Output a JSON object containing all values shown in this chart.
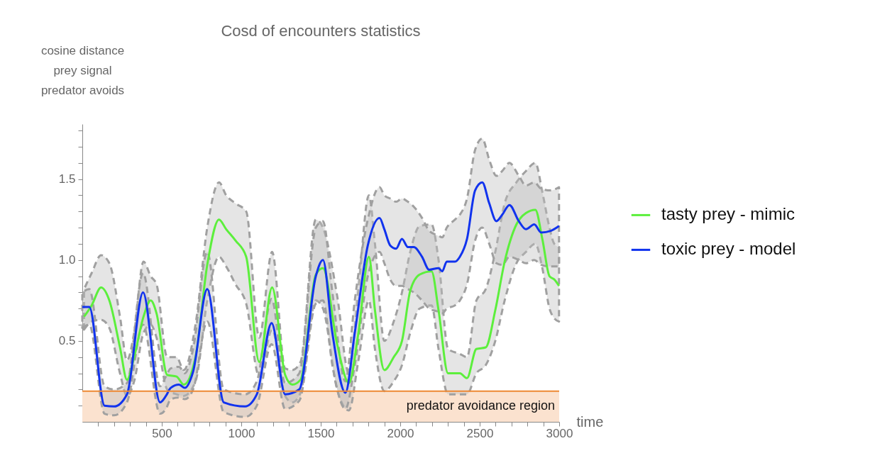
{
  "chart_data": {
    "type": "line",
    "title": "Cosd of encounters statistics",
    "xlabel": "time",
    "ylabel": "cosine distance\nprey signal\npredator avoids",
    "xlim": [
      0,
      3000
    ],
    "ylim": [
      0,
      1.84
    ],
    "xticks": [
      {
        "value": 100,
        "label": null
      },
      {
        "value": 200,
        "label": null
      },
      {
        "value": 300,
        "label": null
      },
      {
        "value": 400,
        "label": null
      },
      500,
      {
        "value": 600,
        "label": null
      },
      {
        "value": 700,
        "label": null
      },
      {
        "value": 800,
        "label": null
      },
      {
        "value": 900,
        "label": null
      },
      1000,
      {
        "value": 1100,
        "label": null
      },
      {
        "value": 1200,
        "label": null
      },
      {
        "value": 1300,
        "label": null
      },
      {
        "value": 1400,
        "label": null
      },
      1500,
      {
        "value": 1600,
        "label": null
      },
      {
        "value": 1700,
        "label": null
      },
      {
        "value": 1800,
        "label": null
      },
      {
        "value": 1900,
        "label": null
      },
      2000,
      {
        "value": 2100,
        "label": null
      },
      {
        "value": 2200,
        "label": null
      },
      {
        "value": 2300,
        "label": null
      },
      {
        "value": 2400,
        "label": null
      },
      2500,
      {
        "value": 2600,
        "label": null
      },
      {
        "value": 2700,
        "label": null
      },
      {
        "value": 2800,
        "label": null
      },
      {
        "value": 2900,
        "label": null
      },
      3000
    ],
    "yticks": [
      {
        "value": 0.1,
        "label": null
      },
      {
        "value": 0.2,
        "label": null
      },
      {
        "value": 0.3,
        "label": null
      },
      {
        "value": 0.4,
        "label": null
      },
      0.5,
      {
        "value": 0.6,
        "label": null
      },
      {
        "value": 0.7,
        "label": null
      },
      {
        "value": 0.8,
        "label": null
      },
      {
        "value": 0.9,
        "label": null
      },
      {
        "value": 1,
        "label": "1.0"
      },
      {
        "value": 1.1,
        "label": null
      },
      {
        "value": 1.2,
        "label": null
      },
      {
        "value": 1.3,
        "label": null
      },
      {
        "value": 1.4,
        "label": null
      },
      1.5,
      {
        "value": 1.6,
        "label": null
      },
      {
        "value": 1.7,
        "label": null
      },
      {
        "value": 1.8,
        "label": null
      }
    ],
    "legend": "right",
    "series": [
      {
        "name": "tasty prey - mimic",
        "color": "#5cef3c",
        "x": [
          11,
          59,
          118,
          170,
          237,
          281,
          326,
          385,
          430,
          467,
          534,
          593,
          638,
          712,
          786,
          860,
          905,
          964,
          1031,
          1113,
          1194,
          1276,
          1321,
          1373,
          1469,
          1514,
          1603,
          1677,
          1737,
          1803,
          1841,
          1900,
          1959,
          2011,
          2063,
          2122,
          2197,
          2241,
          2301,
          2375,
          2420,
          2479,
          2538,
          2598,
          2657,
          2731,
          2791,
          2850,
          2894,
          2939,
          2969,
          2999
        ],
        "values": [
          0.65,
          0.72,
          0.83,
          0.75,
          0.46,
          0.26,
          0.4,
          0.65,
          0.75,
          0.67,
          0.29,
          0.28,
          0.23,
          0.4,
          0.97,
          1.25,
          1.19,
          1.12,
          1.02,
          0.37,
          0.83,
          0.29,
          0.23,
          0.26,
          0.91,
          0.95,
          0.48,
          0.24,
          0.55,
          1.02,
          0.69,
          0.32,
          0.4,
          0.5,
          0.81,
          0.91,
          0.93,
          0.69,
          0.3,
          0.3,
          0.27,
          0.45,
          0.46,
          0.69,
          0.99,
          1.22,
          1.29,
          1.31,
          1.13,
          0.9,
          0.88,
          0.84
        ],
        "upper": [
          0.82,
          0.92,
          1.03,
          0.98,
          0.65,
          0.38,
          0.55,
          0.99,
          0.9,
          0.85,
          0.4,
          0.4,
          0.32,
          0.6,
          1.2,
          1.48,
          1.4,
          1.35,
          1.3,
          0.52,
          1.05,
          0.33,
          0.32,
          0.37,
          1.25,
          1.2,
          0.78,
          0.3,
          0.82,
          1.4,
          1.1,
          0.5,
          0.62,
          0.8,
          1.05,
          1.21,
          1.22,
          1.0,
          0.45,
          0.42,
          0.4,
          0.75,
          0.82,
          1.05,
          1.35,
          1.48,
          1.55,
          1.6,
          1.42,
          1.2,
          1.1,
          1.08
        ],
        "lower": [
          0.57,
          0.62,
          0.63,
          0.58,
          0.3,
          0.16,
          0.25,
          0.55,
          0.6,
          0.52,
          0.2,
          0.17,
          0.16,
          0.25,
          0.75,
          1.02,
          0.96,
          0.85,
          0.73,
          0.28,
          0.57,
          0.16,
          0.12,
          0.18,
          0.75,
          0.7,
          0.2,
          0.07,
          0.38,
          0.75,
          0.45,
          0.19,
          0.25,
          0.35,
          0.55,
          0.7,
          0.72,
          0.45,
          0.17,
          0.17,
          0.17,
          0.3,
          0.35,
          0.5,
          0.75,
          0.98,
          1.05,
          1.1,
          0.95,
          0.7,
          0.64,
          0.62
        ]
      },
      {
        "name": "toxic prey - model",
        "color": "#1133ee",
        "x": [
          0,
          44,
          140,
          200,
          281,
          382,
          489,
          526,
          556,
          608,
          645,
          697,
          786,
          890,
          1024,
          1098,
          1191,
          1276,
          1365,
          1469,
          1514,
          1573,
          1655,
          1714,
          1796,
          1870,
          1900,
          1937,
          1974,
          2011,
          2048,
          2085,
          2137,
          2182,
          2241,
          2264,
          2293,
          2345,
          2375,
          2420,
          2471,
          2516,
          2560,
          2605,
          2642,
          2687,
          2746,
          2791,
          2843,
          2887,
          2947,
          2999
        ],
        "values": [
          0.71,
          0.71,
          0.1,
          0.095,
          0.17,
          0.8,
          0.12,
          0.16,
          0.21,
          0.23,
          0.21,
          0.31,
          0.82,
          0.12,
          0.095,
          0.17,
          0.61,
          0.17,
          0.2,
          0.9,
          1.0,
          0.55,
          0.18,
          0.55,
          1.09,
          1.26,
          1.19,
          1.09,
          1.07,
          1.13,
          1.08,
          1.08,
          1.02,
          0.94,
          0.95,
          0.93,
          0.99,
          0.99,
          1.02,
          1.13,
          1.43,
          1.48,
          1.35,
          1.24,
          1.28,
          1.34,
          1.24,
          1.19,
          1.22,
          1.17,
          1.18,
          1.21
        ],
        "upper": [
          0.8,
          0.82,
          0.22,
          0.2,
          0.24,
          0.92,
          0.22,
          0.28,
          0.33,
          0.34,
          0.3,
          0.45,
          1.05,
          0.2,
          0.17,
          0.25,
          0.76,
          0.24,
          0.3,
          1.2,
          1.24,
          0.8,
          0.25,
          0.75,
          1.25,
          1.45,
          1.4,
          1.38,
          1.36,
          1.38,
          1.36,
          1.33,
          1.26,
          1.18,
          1.15,
          1.14,
          1.2,
          1.25,
          1.28,
          1.38,
          1.68,
          1.75,
          1.62,
          1.52,
          1.55,
          1.6,
          1.52,
          1.46,
          1.48,
          1.44,
          1.43,
          1.45
        ],
        "lower": [
          0.58,
          0.6,
          0.05,
          0.04,
          0.12,
          0.6,
          0.05,
          0.08,
          0.14,
          0.15,
          0.14,
          0.2,
          0.62,
          0.06,
          0.03,
          0.1,
          0.48,
          0.08,
          0.13,
          0.73,
          0.75,
          0.35,
          0.08,
          0.35,
          0.9,
          1.05,
          0.98,
          0.88,
          0.84,
          0.84,
          0.82,
          0.8,
          0.75,
          0.7,
          0.68,
          0.67,
          0.7,
          0.72,
          0.75,
          0.85,
          1.12,
          1.2,
          1.1,
          0.98,
          0.97,
          1.02,
          1.0,
          0.98,
          1.0,
          0.97,
          0.96,
          0.96
        ]
      }
    ],
    "ref_lines": [
      {
        "axis": "y",
        "value": 0.19,
        "color": "#ee8833"
      }
    ],
    "bands": [
      {
        "axis": "y",
        "from": 0,
        "to": 0.19,
        "label": "predator avoidance region",
        "color": "#fbe2cf"
      }
    ]
  }
}
